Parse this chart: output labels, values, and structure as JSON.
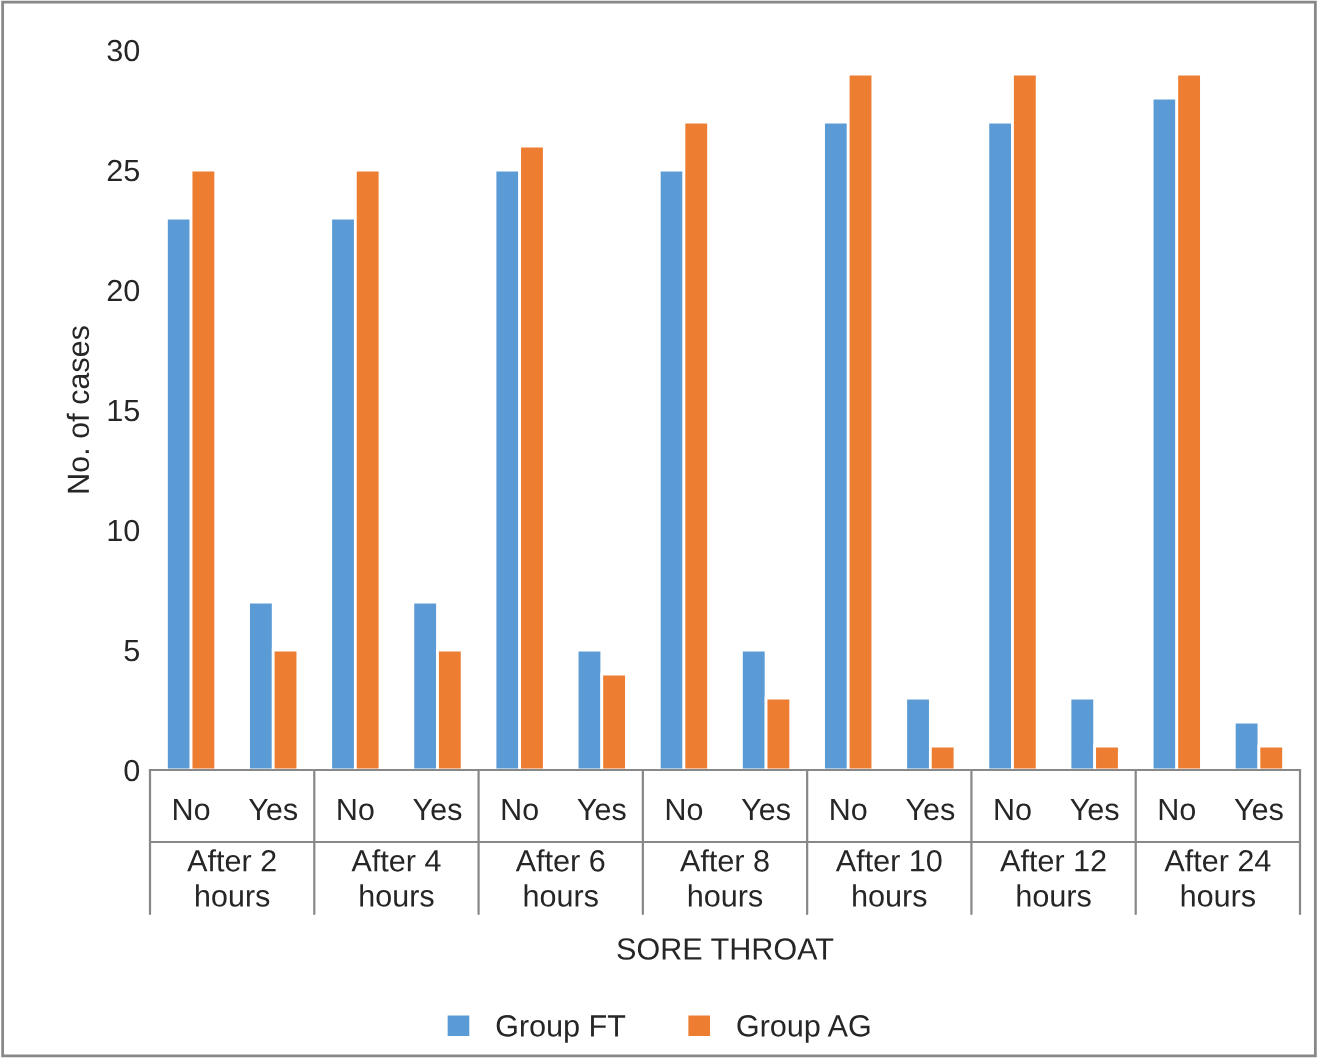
{
  "chart_data": {
    "type": "bar",
    "xlabel": "SORE THROAT",
    "ylabel": "No. of cases",
    "categories": [
      "No",
      "Yes",
      "No",
      "Yes",
      "No",
      "Yes",
      "No",
      "Yes",
      "No",
      "Yes",
      "No",
      "Yes",
      "No",
      "Yes"
    ],
    "series": [
      {
        "name": "Group FT",
        "color": "#5b9bd5",
        "values": [
          23,
          7,
          23,
          7,
          25,
          5,
          25,
          5,
          27,
          3,
          27,
          3,
          28,
          2
        ]
      },
      {
        "name": "Group AG",
        "color": "#ed7d31",
        "values": [
          25,
          5,
          25,
          5,
          26,
          4,
          27,
          3,
          29,
          1,
          29,
          1,
          29,
          1
        ]
      }
    ],
    "annotations": [
      "After 2\nhours",
      "After 4\nhours",
      "After 6\nhours",
      "After 8\nhours",
      "After 10\nhours",
      "After 12\nhours",
      "After 24\nhours"
    ],
    "ylim": [
      0,
      30
    ],
    "yticks": [
      0,
      5,
      10,
      15,
      20,
      25,
      30
    ],
    "grid": false,
    "legend": "bottom"
  }
}
